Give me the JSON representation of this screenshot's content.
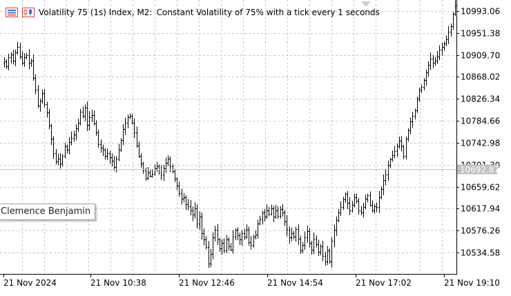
{
  "header": {
    "symbol": "Volatility 75 (1s) Index, M2:",
    "description": "Constant Volatility of 75% with a tick every 1 seconds"
  },
  "tag_label": "Clemence Benjamin",
  "current_price_label": "10692.87",
  "colors": {
    "bar": "#000000",
    "grid": "#c8c8c8",
    "price_line": "#c0c0c0",
    "price_tag_bg": "#c0c0c0",
    "price_tag_text": "#ffffff"
  },
  "chart_data": {
    "type": "bar",
    "symbol": "Volatility 75 (1s) Index",
    "timeframe": "M2",
    "y_ticks": [
      "10993.06",
      "10951.38",
      "10909.70",
      "10868.02",
      "10826.34",
      "10784.66",
      "10742.98",
      "10701.30",
      "10659.62",
      "10617.94",
      "10576.26",
      "10534.58"
    ],
    "x_ticks": [
      "21 Nov 2024",
      "21 Nov 10:38",
      "21 Nov 12:46",
      "21 Nov 14:54",
      "21 Nov 17:02",
      "21 Nov 19:10"
    ],
    "ylim": [
      10499.0,
      11004.0
    ],
    "current_price": 10692.87,
    "grid": true,
    "closes": [
      10891,
      10882,
      10898,
      10904,
      10892,
      10907,
      10918,
      10900,
      10888,
      10898,
      10902,
      10888,
      10892,
      10860,
      10838,
      10810,
      10818,
      10832,
      10812,
      10797,
      10772,
      10748,
      10722,
      10706,
      10712,
      10702,
      10716,
      10734,
      10728,
      10742,
      10750,
      10756,
      10768,
      10778,
      10798,
      10790,
      10806,
      10774,
      10788,
      10792,
      10776,
      10760,
      10738,
      10732,
      10728,
      10716,
      10722,
      10714,
      10708,
      10696,
      10712,
      10728,
      10746,
      10766,
      10778,
      10788,
      10790,
      10778,
      10760,
      10736,
      10716,
      10702,
      10690,
      10676,
      10686,
      10680,
      10684,
      10694,
      10698,
      10692,
      10682,
      10694,
      10704,
      10712,
      10698,
      10688,
      10674,
      10662,
      10648,
      10638,
      10640,
      10628,
      10624,
      10616,
      10608,
      10620,
      10592,
      10604,
      10574,
      10562,
      10548,
      10518,
      10536,
      10566,
      10580,
      10562,
      10546,
      10556,
      10542,
      10562,
      10550,
      10544,
      10568,
      10580,
      10570,
      10562,
      10574,
      10568,
      10580,
      10558,
      10552,
      10568,
      10572,
      10592,
      10600,
      10612,
      10604,
      10616,
      10610,
      10620,
      10604,
      10616,
      10606,
      10618,
      10612,
      10596,
      10580,
      10566,
      10574,
      10568,
      10582,
      10564,
      10542,
      10552,
      10566,
      10578,
      10556,
      10544,
      10564,
      10554,
      10540,
      10550,
      10532,
      10522,
      10542,
      10522,
      10560,
      10580,
      10598,
      10612,
      10622,
      10636,
      10646,
      10630,
      10616,
      10626,
      10640,
      10634,
      10616,
      10612,
      10622,
      10638,
      10644,
      10626,
      10616,
      10624,
      10622,
      10640,
      10656,
      10672,
      10682,
      10700,
      10710,
      10718,
      10726,
      10734,
      10744,
      10734,
      10716,
      10748,
      10764,
      10780,
      10790,
      10800,
      10822,
      10838,
      10844,
      10856,
      10870,
      10884,
      10896,
      10888,
      10892,
      10900,
      10912,
      10918,
      10924,
      10932,
      10946,
      10956,
      10978,
      10994
    ]
  }
}
